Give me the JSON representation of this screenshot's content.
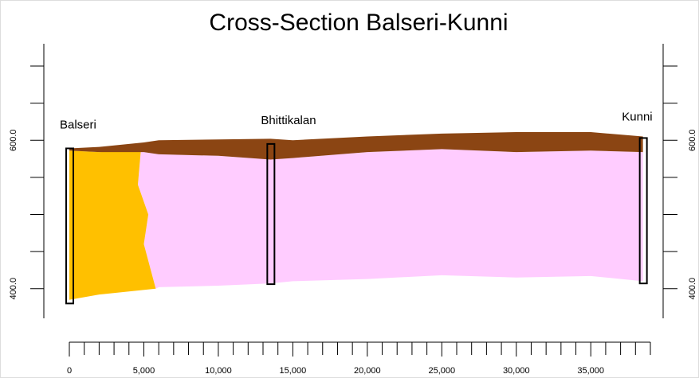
{
  "chart_data": {
    "type": "cross-section",
    "title": "Cross-Section Balseri-Kunni",
    "xlim": [
      0,
      39000
    ],
    "xticks": [
      0,
      {
        "value": 5000,
        "label": "5,000"
      },
      {
        "value": 10000,
        "label": "10,000"
      },
      {
        "value": 15000,
        "label": "15,000"
      },
      {
        "value": 20000,
        "label": "20,000"
      },
      {
        "value": 25000,
        "label": "25,000"
      },
      {
        "value": 30000,
        "label": "30,000"
      },
      {
        "value": 35000,
        "label": "35,000"
      }
    ],
    "xminor_ticks": [
      1000,
      2000,
      3000,
      4000,
      6000,
      7000,
      8000,
      9000,
      11000,
      12000,
      13000,
      14000,
      16000,
      17000,
      18000,
      19000,
      21000,
      22000,
      23000,
      24000,
      26000,
      27000,
      28000,
      29000,
      31000,
      32000,
      33000,
      34000,
      36000,
      37000,
      38000,
      39000
    ],
    "ylim": [
      360,
      730
    ],
    "yticks": [
      {
        "value": 400,
        "label": "400.0"
      },
      {
        "value": 600,
        "label": "600.0"
      }
    ],
    "yminor_ticks": [
      450,
      500,
      550,
      650,
      700
    ],
    "x": [
      0,
      2000,
      5000,
      6000,
      10000,
      13500,
      15000,
      20000,
      25000,
      30000,
      35000,
      38500
    ],
    "surface": [
      589,
      591,
      597,
      600,
      601,
      602,
      600,
      605,
      609,
      611,
      611,
      605
    ],
    "soil_base": [
      586,
      584,
      584,
      581,
      579,
      574,
      576,
      584,
      588,
      584,
      586,
      584
    ],
    "bottom": [
      385,
      392,
      400,
      402,
      404,
      407,
      410,
      413,
      418,
      415,
      417,
      410
    ],
    "boundary_x": [
      4800,
      4600,
      5300,
      5000,
      5800
    ],
    "boundary_elev": [
      586,
      540,
      500,
      460,
      400
    ],
    "boreholes": [
      {
        "name": "Balseri",
        "x": 0,
        "top": 589,
        "bottom": 380
      },
      {
        "name": "Bhittikalan",
        "x": 13500,
        "top": 595,
        "bottom": 406
      },
      {
        "name": "Kunni",
        "x": 38500,
        "top": 603,
        "bottom": 407
      }
    ],
    "colors": {
      "soil": "#8b4513",
      "sediment": "#ffc000",
      "rock": "#ffccff"
    }
  }
}
